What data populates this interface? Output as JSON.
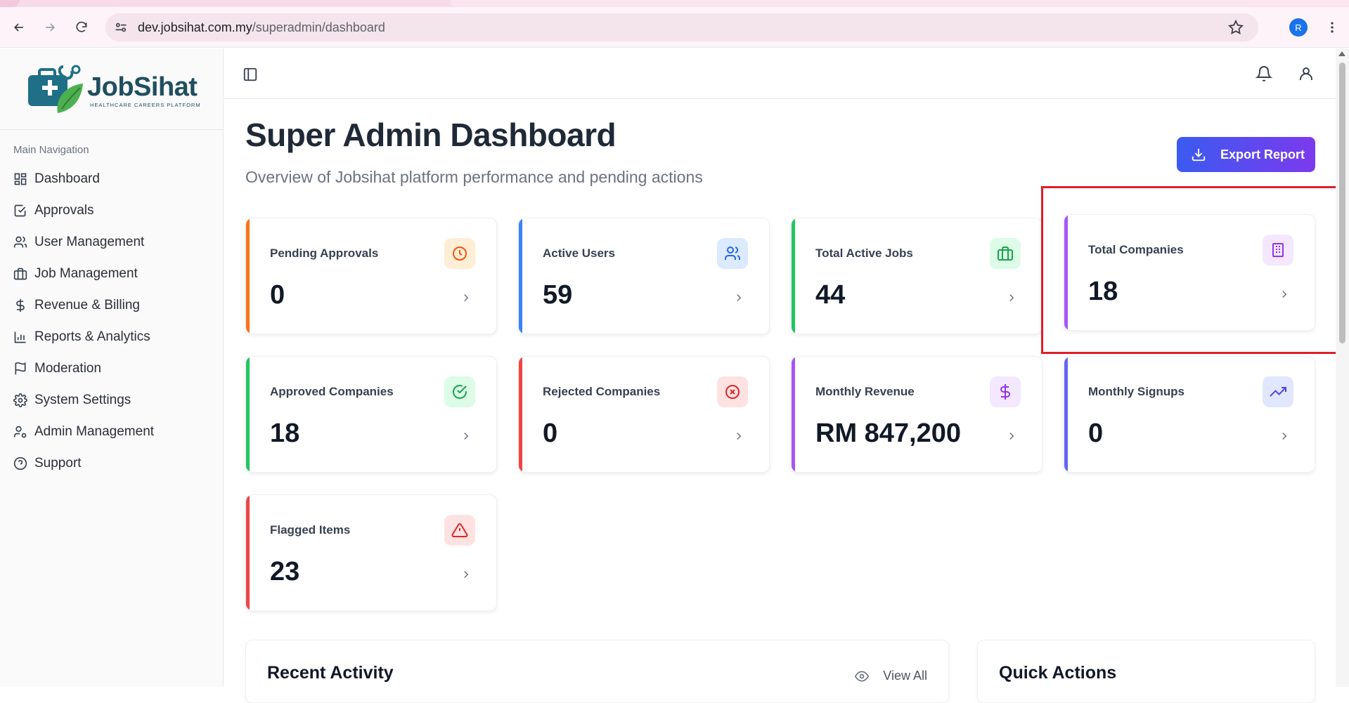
{
  "browser": {
    "url_host": "dev.jobsihat.com.my",
    "url_path": "/superadmin/dashboard",
    "profile_initial": "R"
  },
  "sidebar": {
    "logo_text": "JobSihat",
    "logo_tagline": "HEALTHCARE CAREERS PLATFORM",
    "section_title": "Main Navigation",
    "items": [
      {
        "label": "Dashboard",
        "icon": "grid-icon"
      },
      {
        "label": "Approvals",
        "icon": "check-square-icon"
      },
      {
        "label": "User Management",
        "icon": "users-icon"
      },
      {
        "label": "Job Management",
        "icon": "briefcase-icon"
      },
      {
        "label": "Revenue & Billing",
        "icon": "dollar-icon"
      },
      {
        "label": "Reports & Analytics",
        "icon": "bar-chart-icon"
      },
      {
        "label": "Moderation",
        "icon": "flag-icon"
      },
      {
        "label": "System Settings",
        "icon": "gear-icon"
      },
      {
        "label": "Admin Management",
        "icon": "user-cog-icon"
      },
      {
        "label": "Support",
        "icon": "help-circle-icon"
      }
    ]
  },
  "header": {
    "title": "Super Admin Dashboard",
    "subtitle": "Overview of Jobsihat platform performance and pending actions",
    "export_label": "Export Report"
  },
  "cards": [
    {
      "label": "Pending Approvals",
      "value": "0",
      "accent": "#f97316",
      "icon": "clock-icon"
    },
    {
      "label": "Active Users",
      "value": "59",
      "accent": "#3b82f6",
      "icon": "users-icon"
    },
    {
      "label": "Total Active Jobs",
      "value": "44",
      "accent": "#22c55e",
      "icon": "briefcase-icon"
    },
    {
      "label": "Total Companies",
      "value": "18",
      "accent": "#a855f7",
      "icon": "building-icon"
    },
    {
      "label": "Approved Companies",
      "value": "18",
      "accent": "#22c55e",
      "icon": "check-circle-icon"
    },
    {
      "label": "Rejected Companies",
      "value": "0",
      "accent": "#ef4444",
      "icon": "x-circle-icon"
    },
    {
      "label": "Monthly Revenue",
      "value": "RM 847,200",
      "accent": "#a855f7",
      "icon": "dollar-icon"
    },
    {
      "label": "Monthly Signups",
      "value": "0",
      "accent": "#6366f1",
      "icon": "trending-up-icon"
    },
    {
      "label": "Flagged Items",
      "value": "23",
      "accent": "#ef4444",
      "icon": "alert-triangle-icon"
    }
  ],
  "panels": {
    "recent_activity": "Recent Activity",
    "view_all": "View All",
    "quick_actions": "Quick Actions"
  }
}
